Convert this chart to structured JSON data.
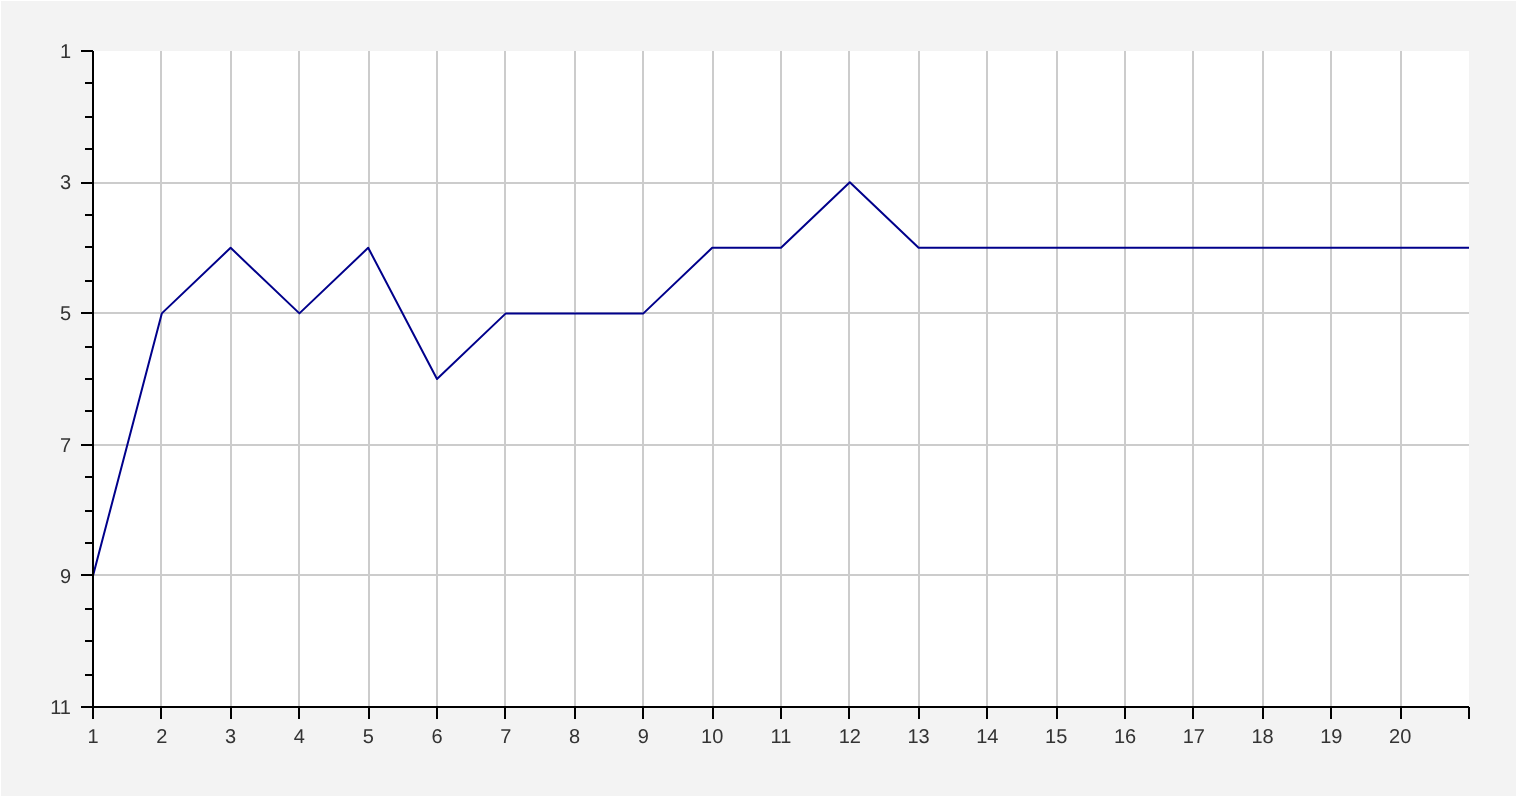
{
  "chart_data": {
    "type": "line",
    "x": [
      1,
      2,
      3,
      4,
      5,
      6,
      7,
      8,
      9,
      10,
      11,
      12,
      13,
      14,
      15,
      16,
      17,
      18,
      19,
      20,
      21
    ],
    "series": [
      {
        "color": "#00008b",
        "values": [
          9,
          5,
          4,
          5,
          4,
          6,
          5,
          5,
          5,
          4,
          4,
          3,
          4,
          4,
          4,
          4,
          4,
          4,
          4,
          4,
          4
        ]
      }
    ],
    "xlim": [
      1,
      21
    ],
    "xticks": [
      1,
      2,
      3,
      4,
      5,
      6,
      7,
      8,
      9,
      10,
      11,
      12,
      13,
      14,
      15,
      16,
      17,
      18,
      19,
      20,
      {
        "value": 21,
        "label": null
      }
    ],
    "ylim": [
      11,
      1
    ],
    "yticks": [
      1,
      3,
      5,
      7,
      9,
      11
    ],
    "grid": true,
    "marker": "none",
    "line_style": "solid"
  }
}
